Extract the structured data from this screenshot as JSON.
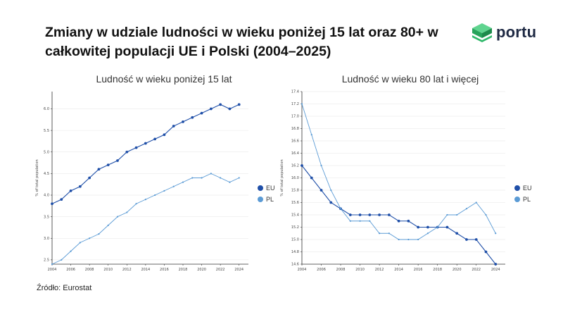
{
  "header": {
    "title": "Zmiany w udziale ludności w wieku poniżej 15 lat oraz 80+ w całkowitej populacji UE i Polski (2004–2025)",
    "logo_text": "portu"
  },
  "source": "Źródło: Eurostat",
  "colors": {
    "eu": "#1f4fa8",
    "pl": "#5b9bd5",
    "logo_green": "#2fb86a",
    "axis": "#333333",
    "grid": "#e6e6e6"
  },
  "chart_data": [
    {
      "type": "line",
      "title": "Ludność w wieku poniżej 15 lat",
      "ylabel": "% of total population",
      "xlim": [
        2004,
        2025
      ],
      "ylim": [
        2.4,
        6.4
      ],
      "x_ticks": [
        2004,
        2006,
        2008,
        2010,
        2012,
        2014,
        2016,
        2018,
        2020,
        2022,
        2024
      ],
      "y_ticks": [
        2.5,
        3.0,
        3.5,
        4.0,
        4.5,
        5.0,
        5.5,
        6.0
      ],
      "y_tick_labels": [
        "2.5",
        "3.0",
        "3.5",
        "4.0",
        "4.5",
        "5.0",
        "5.5",
        "6.0"
      ],
      "x": [
        2004,
        2005,
        2006,
        2007,
        2008,
        2009,
        2010,
        2011,
        2012,
        2013,
        2014,
        2015,
        2016,
        2017,
        2018,
        2019,
        2020,
        2021,
        2022,
        2023,
        2024
      ],
      "grid": true,
      "legend_position": "right",
      "series": [
        {
          "name": "EU",
          "values": [
            3.8,
            3.9,
            4.1,
            4.2,
            4.4,
            4.6,
            4.7,
            4.8,
            5.0,
            5.1,
            5.2,
            5.3,
            5.4,
            5.6,
            5.7,
            5.8,
            5.9,
            6.0,
            6.1,
            6.0,
            6.1
          ]
        },
        {
          "name": "PL",
          "values": [
            2.4,
            2.5,
            2.7,
            2.9,
            3.0,
            3.1,
            3.3,
            3.5,
            3.6,
            3.8,
            3.9,
            4.0,
            4.1,
            4.2,
            4.3,
            4.4,
            4.4,
            4.5,
            4.4,
            4.3,
            4.4
          ]
        }
      ]
    },
    {
      "type": "line",
      "title": "Ludność w wieku 80 lat i więcej",
      "ylabel": "% of total population",
      "xlim": [
        2004,
        2025
      ],
      "ylim": [
        14.6,
        17.4
      ],
      "x_ticks": [
        2004,
        2006,
        2008,
        2010,
        2012,
        2014,
        2016,
        2018,
        2020,
        2022,
        2024
      ],
      "y_ticks": [
        14.6,
        14.8,
        15.0,
        15.2,
        15.4,
        15.6,
        15.8,
        16.0,
        16.2,
        16.4,
        16.6,
        16.8,
        17.0,
        17.2,
        17.4
      ],
      "y_tick_labels": [
        "14.6",
        "14.8",
        "15.0",
        "15.2",
        "15.4",
        "15.6",
        "15.8",
        "16.0",
        "16.2",
        "16.4",
        "16.6",
        "16.8",
        "17.0",
        "17.2",
        "17.4"
      ],
      "x": [
        2004,
        2005,
        2006,
        2007,
        2008,
        2009,
        2010,
        2011,
        2012,
        2013,
        2014,
        2015,
        2016,
        2017,
        2018,
        2019,
        2020,
        2021,
        2022,
        2023,
        2024
      ],
      "grid": true,
      "legend_position": "right",
      "series": [
        {
          "name": "EU",
          "values": [
            16.2,
            16.0,
            15.8,
            15.6,
            15.5,
            15.4,
            15.4,
            15.4,
            15.4,
            15.4,
            15.3,
            15.3,
            15.2,
            15.2,
            15.2,
            15.2,
            15.1,
            15.0,
            15.0,
            14.8,
            14.6
          ]
        },
        {
          "name": "PL",
          "values": [
            17.2,
            16.7,
            16.2,
            15.8,
            15.5,
            15.3,
            15.3,
            15.3,
            15.1,
            15.1,
            15.0,
            15.0,
            15.0,
            15.1,
            15.2,
            15.4,
            15.4,
            15.5,
            15.6,
            15.4,
            15.1
          ]
        }
      ]
    }
  ]
}
